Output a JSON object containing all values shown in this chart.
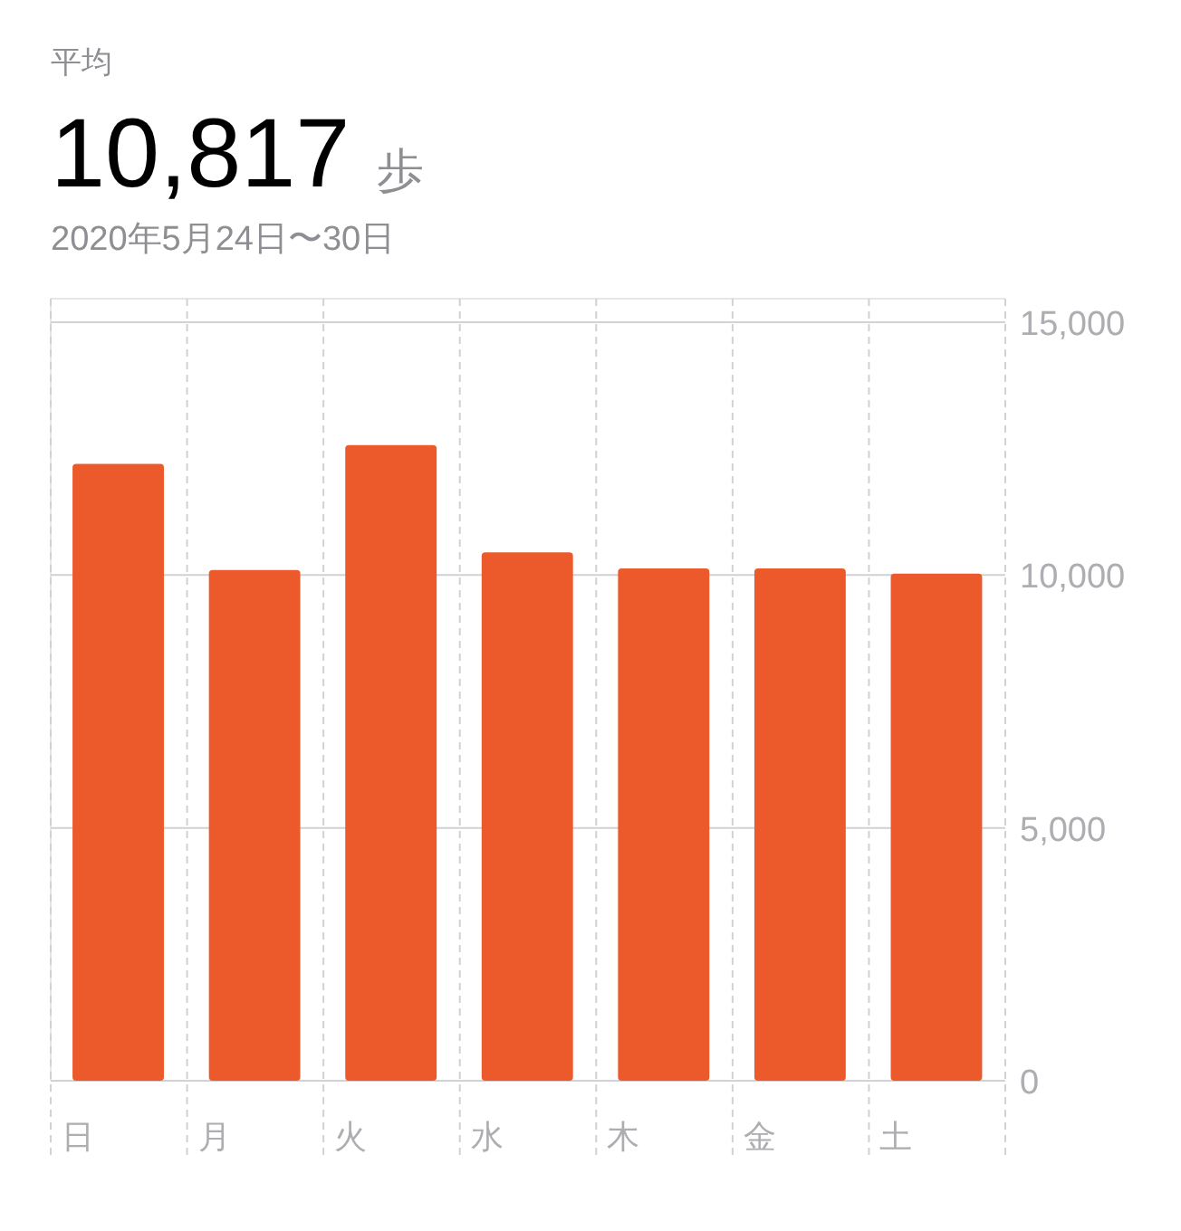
{
  "chart_data": {
    "type": "bar",
    "title": "10,817 歩",
    "subtitle": "2020年5月24日〜30日",
    "annotations": [
      "平均"
    ],
    "categories": [
      "日",
      "月",
      "火",
      "水",
      "木",
      "金",
      "土"
    ],
    "values": [
      12200,
      10100,
      12570,
      10450,
      10130,
      10130,
      10030
    ],
    "color": "#ec5a2b",
    "ylim": [
      0,
      15000
    ],
    "yticks": [
      {
        "value": 0,
        "label": "0"
      },
      {
        "value": 5000,
        "label": "5,000"
      },
      {
        "value": 10000,
        "label": "10,000"
      },
      {
        "value": 15000,
        "label": "15,000"
      }
    ],
    "grid": true
  }
}
